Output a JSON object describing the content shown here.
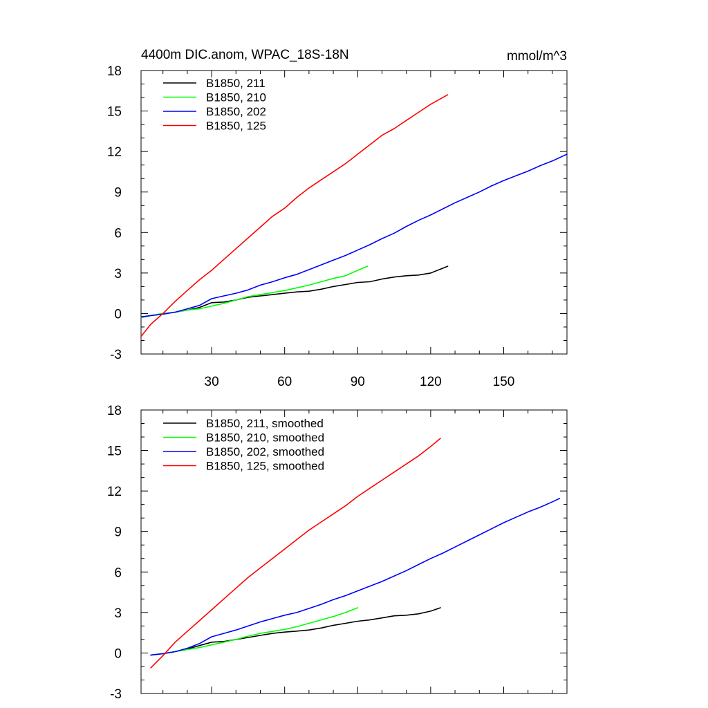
{
  "figure": {
    "title_left": "4400m DIC.anom, WPAC_18S-18N",
    "title_right": "mmol/m^3"
  },
  "chart_data": [
    {
      "type": "line",
      "panel": "top",
      "title": "4400m DIC.anom, WPAC_18S-18N",
      "units": "mmol/m^3",
      "xlim": [
        1,
        176
      ],
      "ylim": [
        -3,
        18
      ],
      "xticks": [
        30,
        60,
        90,
        120,
        150
      ],
      "yticks": [
        -3,
        0,
        3,
        6,
        9,
        12,
        15,
        18
      ],
      "xtick_labels": [
        "30",
        "60",
        "90",
        "120",
        "150"
      ],
      "ytick_labels": [
        "-3",
        "0",
        "3",
        "6",
        "9",
        "12",
        "15",
        "18"
      ],
      "legend_position": "top-left",
      "series": [
        {
          "name": "B1850, 211",
          "color": "#000000",
          "x": [
            1,
            5,
            10,
            15,
            20,
            25,
            30,
            35,
            40,
            45,
            50,
            55,
            60,
            65,
            70,
            75,
            80,
            85,
            90,
            95,
            100,
            105,
            110,
            115,
            120,
            127
          ],
          "y": [
            -0.3,
            -0.15,
            0,
            0.1,
            0.25,
            0.45,
            0.8,
            0.85,
            1.0,
            1.2,
            1.3,
            1.4,
            1.5,
            1.6,
            1.65,
            1.8,
            2.0,
            2.15,
            2.3,
            2.35,
            2.55,
            2.7,
            2.8,
            2.85,
            3.0,
            3.5
          ]
        },
        {
          "name": "B1850, 210",
          "color": "#00ff00",
          "x": [
            1,
            5,
            10,
            15,
            20,
            25,
            30,
            35,
            40,
            45,
            50,
            55,
            60,
            65,
            70,
            75,
            80,
            85,
            90,
            94
          ],
          "y": [
            -0.3,
            -0.15,
            0,
            0.1,
            0.25,
            0.35,
            0.55,
            0.75,
            1.0,
            1.25,
            1.4,
            1.55,
            1.7,
            1.9,
            2.1,
            2.35,
            2.6,
            2.8,
            3.2,
            3.5
          ]
        },
        {
          "name": "B1850, 202",
          "color": "#0000ff",
          "x": [
            1,
            5,
            10,
            15,
            20,
            25,
            30,
            35,
            40,
            45,
            50,
            55,
            60,
            65,
            70,
            75,
            80,
            85,
            90,
            95,
            100,
            105,
            110,
            115,
            120,
            125,
            130,
            135,
            140,
            145,
            150,
            155,
            160,
            165,
            170,
            176
          ],
          "y": [
            -0.25,
            -0.15,
            -0.05,
            0.1,
            0.35,
            0.6,
            1.1,
            1.3,
            1.5,
            1.75,
            2.1,
            2.35,
            2.65,
            2.9,
            3.25,
            3.6,
            3.95,
            4.3,
            4.7,
            5.1,
            5.55,
            5.95,
            6.45,
            6.9,
            7.3,
            7.75,
            8.2,
            8.6,
            9.0,
            9.45,
            9.85,
            10.2,
            10.55,
            10.95,
            11.3,
            11.8
          ]
        },
        {
          "name": "B1850, 125",
          "color": "#ff0000",
          "x": [
            1,
            5,
            10,
            15,
            20,
            25,
            30,
            35,
            40,
            45,
            50,
            55,
            60,
            65,
            70,
            75,
            80,
            85,
            90,
            95,
            100,
            105,
            110,
            115,
            120,
            127
          ],
          "y": [
            -1.7,
            -0.8,
            0,
            0.9,
            1.7,
            2.5,
            3.2,
            4.0,
            4.8,
            5.6,
            6.4,
            7.2,
            7.8,
            8.6,
            9.3,
            9.9,
            10.5,
            11.1,
            11.8,
            12.5,
            13.2,
            13.7,
            14.3,
            14.9,
            15.5,
            16.2
          ]
        }
      ]
    },
    {
      "type": "line",
      "panel": "bottom",
      "xlim": [
        1,
        176
      ],
      "ylim": [
        -3,
        18
      ],
      "xticks": [
        30,
        60,
        90,
        120,
        150
      ],
      "yticks": [
        -3,
        0,
        3,
        6,
        9,
        12,
        15,
        18
      ],
      "ytick_labels": [
        "-3",
        "0",
        "3",
        "6",
        "9",
        "12",
        "15",
        "18"
      ],
      "legend_position": "top-left",
      "series": [
        {
          "name": "B1850, 211, smoothed",
          "color": "#000000",
          "x": [
            5,
            10,
            15,
            20,
            25,
            30,
            35,
            40,
            45,
            50,
            55,
            60,
            65,
            70,
            75,
            80,
            85,
            90,
            95,
            100,
            105,
            110,
            115,
            120,
            124
          ],
          "y": [
            -0.15,
            -0.05,
            0.1,
            0.3,
            0.55,
            0.8,
            0.85,
            1.0,
            1.15,
            1.3,
            1.45,
            1.55,
            1.62,
            1.7,
            1.85,
            2.05,
            2.2,
            2.35,
            2.45,
            2.6,
            2.75,
            2.8,
            2.9,
            3.1,
            3.35
          ]
        },
        {
          "name": "B1850, 210, smoothed",
          "color": "#00ff00",
          "x": [
            5,
            10,
            15,
            20,
            25,
            30,
            35,
            40,
            45,
            50,
            55,
            60,
            65,
            70,
            75,
            80,
            85,
            90
          ],
          "y": [
            -0.15,
            -0.05,
            0.1,
            0.25,
            0.4,
            0.6,
            0.8,
            1.0,
            1.25,
            1.45,
            1.6,
            1.75,
            1.95,
            2.2,
            2.45,
            2.7,
            3.0,
            3.35
          ]
        },
        {
          "name": "B1850, 202, smoothed",
          "color": "#0000ff",
          "x": [
            5,
            10,
            15,
            20,
            25,
            30,
            35,
            40,
            45,
            50,
            55,
            60,
            65,
            70,
            75,
            80,
            85,
            90,
            95,
            100,
            105,
            110,
            115,
            120,
            125,
            130,
            135,
            140,
            145,
            150,
            155,
            160,
            165,
            170,
            173
          ],
          "y": [
            -0.15,
            -0.05,
            0.1,
            0.35,
            0.7,
            1.2,
            1.45,
            1.7,
            2.0,
            2.3,
            2.55,
            2.8,
            3.0,
            3.3,
            3.6,
            3.95,
            4.25,
            4.6,
            4.95,
            5.3,
            5.7,
            6.1,
            6.55,
            7.0,
            7.4,
            7.85,
            8.3,
            8.75,
            9.2,
            9.65,
            10.05,
            10.45,
            10.8,
            11.2,
            11.45
          ]
        },
        {
          "name": "B1850, 125, smoothed",
          "color": "#ff0000",
          "x": [
            5,
            10,
            15,
            20,
            25,
            30,
            35,
            40,
            45,
            50,
            55,
            60,
            65,
            70,
            75,
            80,
            85,
            90,
            95,
            100,
            105,
            110,
            115,
            120,
            124
          ],
          "y": [
            -1.1,
            -0.2,
            0.8,
            1.6,
            2.4,
            3.2,
            4.0,
            4.8,
            5.6,
            6.3,
            7.0,
            7.7,
            8.4,
            9.1,
            9.7,
            10.3,
            10.9,
            11.6,
            12.2,
            12.8,
            13.4,
            14.0,
            14.6,
            15.3,
            15.9
          ]
        }
      ]
    }
  ]
}
